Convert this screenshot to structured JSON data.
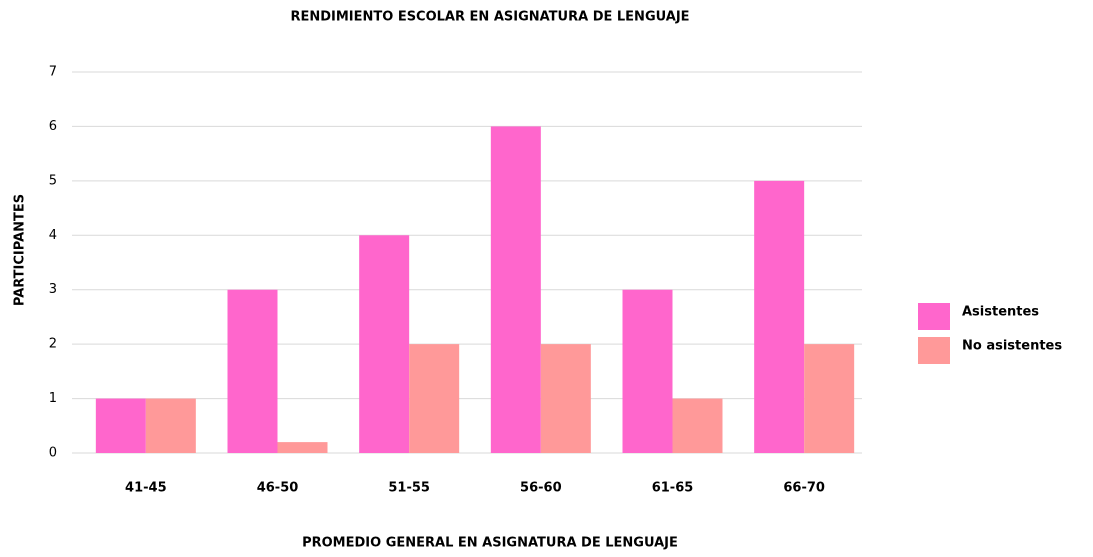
{
  "chart_data": {
    "type": "bar",
    "title": "RENDIMIENTO ESCOLAR EN ASIGNATURA DE LENGUAJE",
    "x_label": "PROMEDIO GENERAL EN ASIGNATURA DE LENGUAJE",
    "y_label": "PARTICIPANTES",
    "categories": [
      "41-45",
      "46-50",
      "51-55",
      "56-60",
      "61-65",
      "66-70"
    ],
    "series": [
      {
        "name": "Asistentes",
        "color": "#ff66cc",
        "values": [
          1,
          3,
          4,
          6,
          3,
          5
        ]
      },
      {
        "name": "No asistentes",
        "color": "#ff9999",
        "values": [
          1,
          0.2,
          2,
          2,
          1,
          2
        ]
      }
    ],
    "ylim": [
      0,
      7
    ],
    "yticks": [
      0,
      1,
      2,
      3,
      4,
      5,
      6,
      7
    ],
    "grid": true,
    "legend": "right"
  }
}
